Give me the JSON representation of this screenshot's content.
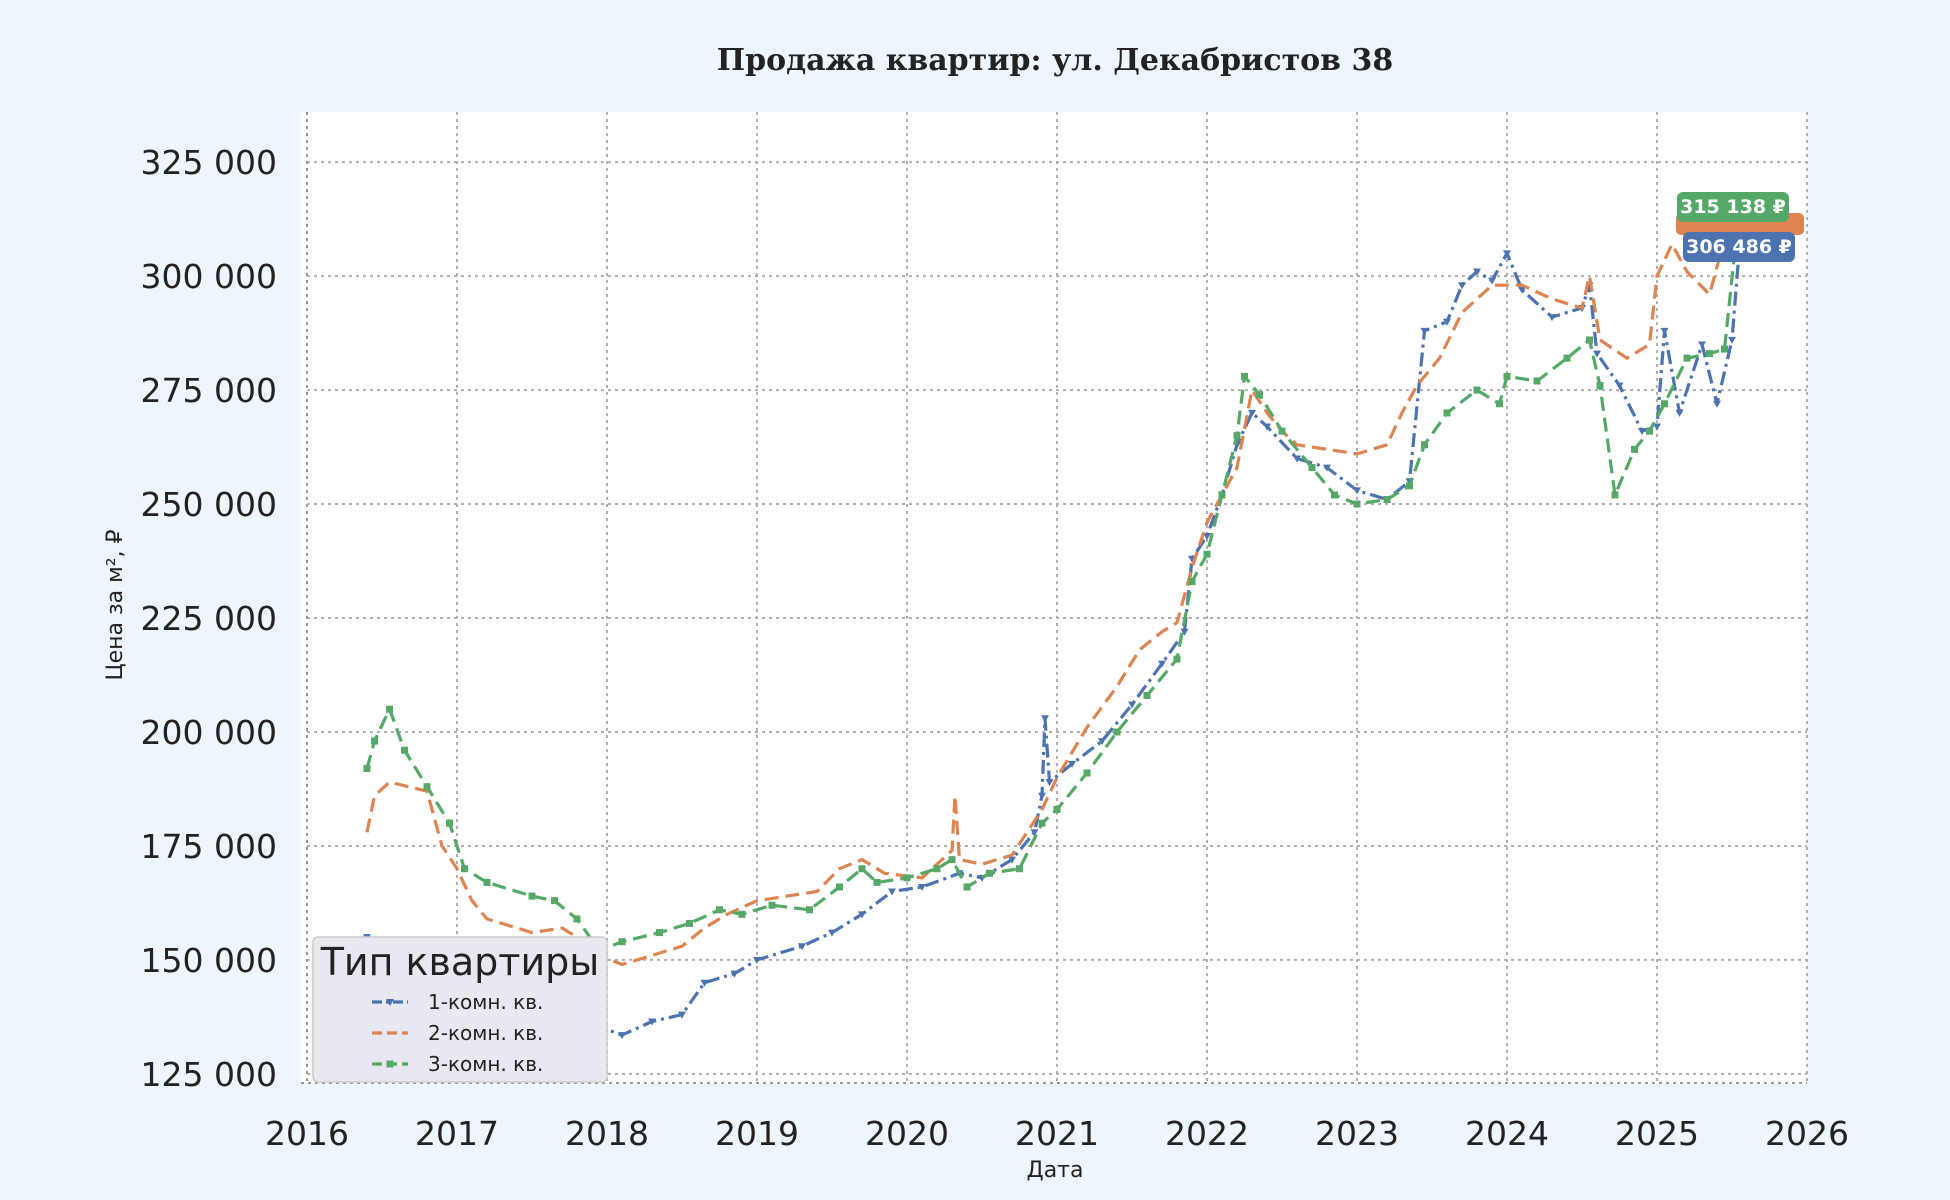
{
  "chart_data": {
    "type": "line",
    "title": "Продажа квартир: ул. Декабристов 38",
    "xlabel": "Дата",
    "ylabel": "Цена за м², ₽",
    "xlim": [
      2016.0,
      2026.0
    ],
    "ylim": [
      123000,
      336000
    ],
    "x_ticks": [
      "2016",
      "2017",
      "2018",
      "2019",
      "2020",
      "2021",
      "2022",
      "2023",
      "2024",
      "2025",
      "2026"
    ],
    "y_ticks": [
      "125 000",
      "150 000",
      "175 000",
      "200 000",
      "225 000",
      "250 000",
      "275 000",
      "300 000",
      "325 000"
    ],
    "y_tick_values": [
      125000,
      150000,
      175000,
      200000,
      225000,
      250000,
      275000,
      300000,
      325000
    ],
    "grid": true,
    "legend": {
      "title": "Тип квартиры",
      "placement": "lower-left"
    },
    "series": [
      {
        "name": "1-комн. кв.",
        "color": "#4c72b0",
        "style": "dash-dot",
        "marker": "triangle-down",
        "end_label": "306 486 ₽",
        "points": [
          [
            2016.4,
            155000
          ],
          [
            2016.6,
            153000
          ],
          [
            2016.9,
            150000
          ],
          [
            2017.2,
            146000
          ],
          [
            2017.5,
            141000
          ],
          [
            2017.7,
            138000
          ],
          [
            2017.9,
            136000
          ],
          [
            2018.1,
            133500
          ],
          [
            2018.3,
            136500
          ],
          [
            2018.5,
            138000
          ],
          [
            2018.65,
            145000
          ],
          [
            2018.85,
            147000
          ],
          [
            2019.0,
            150000
          ],
          [
            2019.3,
            153000
          ],
          [
            2019.5,
            156000
          ],
          [
            2019.7,
            160000
          ],
          [
            2019.9,
            165000
          ],
          [
            2020.1,
            166000
          ],
          [
            2020.35,
            169000
          ],
          [
            2020.5,
            168000
          ],
          [
            2020.7,
            172000
          ],
          [
            2020.85,
            178000
          ],
          [
            2020.9,
            186000
          ],
          [
            2020.92,
            203000
          ],
          [
            2020.95,
            189000
          ],
          [
            2021.1,
            193000
          ],
          [
            2021.3,
            198000
          ],
          [
            2021.5,
            206000
          ],
          [
            2021.7,
            215000
          ],
          [
            2021.85,
            222000
          ],
          [
            2021.9,
            238000
          ],
          [
            2022.0,
            243000
          ],
          [
            2022.1,
            252000
          ],
          [
            2022.2,
            263000
          ],
          [
            2022.3,
            270000
          ],
          [
            2022.4,
            267000
          ],
          [
            2022.6,
            260000
          ],
          [
            2022.8,
            258000
          ],
          [
            2023.0,
            253000
          ],
          [
            2023.2,
            251000
          ],
          [
            2023.35,
            255000
          ],
          [
            2023.45,
            288000
          ],
          [
            2023.6,
            290000
          ],
          [
            2023.7,
            298000
          ],
          [
            2023.8,
            301000
          ],
          [
            2023.9,
            299000
          ],
          [
            2024.0,
            305000
          ],
          [
            2024.1,
            297000
          ],
          [
            2024.3,
            291000
          ],
          [
            2024.5,
            293000
          ],
          [
            2024.55,
            298000
          ],
          [
            2024.6,
            283000
          ],
          [
            2024.75,
            276000
          ],
          [
            2024.9,
            266000
          ],
          [
            2025.0,
            267000
          ],
          [
            2025.05,
            288000
          ],
          [
            2025.15,
            270000
          ],
          [
            2025.3,
            285000
          ],
          [
            2025.4,
            272000
          ],
          [
            2025.5,
            286000
          ],
          [
            2025.55,
            306486
          ]
        ]
      },
      {
        "name": "2-комн. кв.",
        "color": "#dd8452",
        "style": "dashed",
        "marker": "none",
        "end_label": "",
        "points": [
          [
            2016.4,
            178000
          ],
          [
            2016.45,
            186000
          ],
          [
            2016.55,
            189000
          ],
          [
            2016.8,
            187000
          ],
          [
            2016.9,
            175000
          ],
          [
            2017.0,
            170000
          ],
          [
            2017.1,
            163000
          ],
          [
            2017.2,
            159000
          ],
          [
            2017.5,
            156000
          ],
          [
            2017.7,
            157000
          ],
          [
            2017.8,
            155000
          ],
          [
            2017.95,
            151000
          ],
          [
            2018.1,
            149000
          ],
          [
            2018.3,
            151000
          ],
          [
            2018.5,
            153000
          ],
          [
            2018.65,
            157000
          ],
          [
            2018.8,
            160000
          ],
          [
            2019.0,
            163000
          ],
          [
            2019.2,
            164000
          ],
          [
            2019.4,
            165000
          ],
          [
            2019.55,
            170000
          ],
          [
            2019.7,
            172000
          ],
          [
            2019.85,
            169000
          ],
          [
            2020.1,
            168000
          ],
          [
            2020.3,
            174000
          ],
          [
            2020.32,
            186000
          ],
          [
            2020.35,
            172000
          ],
          [
            2020.5,
            171000
          ],
          [
            2020.7,
            173000
          ],
          [
            2020.9,
            183000
          ],
          [
            2021.0,
            190000
          ],
          [
            2021.2,
            201000
          ],
          [
            2021.4,
            210000
          ],
          [
            2021.55,
            218000
          ],
          [
            2021.7,
            222000
          ],
          [
            2021.8,
            224000
          ],
          [
            2021.9,
            236000
          ],
          [
            2022.0,
            246000
          ],
          [
            2022.1,
            252000
          ],
          [
            2022.2,
            258000
          ],
          [
            2022.3,
            275000
          ],
          [
            2022.4,
            270000
          ],
          [
            2022.5,
            266000
          ],
          [
            2022.6,
            263000
          ],
          [
            2022.8,
            262000
          ],
          [
            2023.0,
            261000
          ],
          [
            2023.2,
            263000
          ],
          [
            2023.3,
            270000
          ],
          [
            2023.4,
            276000
          ],
          [
            2023.55,
            282000
          ],
          [
            2023.7,
            292000
          ],
          [
            2023.9,
            298000
          ],
          [
            2024.1,
            298000
          ],
          [
            2024.3,
            295000
          ],
          [
            2024.5,
            293000
          ],
          [
            2024.55,
            300000
          ],
          [
            2024.62,
            286000
          ],
          [
            2024.8,
            282000
          ],
          [
            2024.95,
            285000
          ],
          [
            2025.0,
            300000
          ],
          [
            2025.1,
            307000
          ],
          [
            2025.2,
            301000
          ],
          [
            2025.35,
            296000
          ],
          [
            2025.45,
            308000
          ],
          [
            2025.55,
            312000
          ]
        ]
      },
      {
        "name": "3-комн. кв.",
        "color": "#55a868",
        "style": "dashed",
        "marker": "square",
        "end_label": "315 138 ₽",
        "points": [
          [
            2016.4,
            192000
          ],
          [
            2016.45,
            198000
          ],
          [
            2016.55,
            205000
          ],
          [
            2016.65,
            196000
          ],
          [
            2016.8,
            188000
          ],
          [
            2016.95,
            180000
          ],
          [
            2017.05,
            170000
          ],
          [
            2017.2,
            167000
          ],
          [
            2017.5,
            164000
          ],
          [
            2017.65,
            163000
          ],
          [
            2017.8,
            159000
          ],
          [
            2017.95,
            152000
          ],
          [
            2018.1,
            154000
          ],
          [
            2018.35,
            156000
          ],
          [
            2018.55,
            158000
          ],
          [
            2018.75,
            161000
          ],
          [
            2018.9,
            160000
          ],
          [
            2019.1,
            162000
          ],
          [
            2019.35,
            161000
          ],
          [
            2019.55,
            166000
          ],
          [
            2019.7,
            170000
          ],
          [
            2019.8,
            167000
          ],
          [
            2020.0,
            168000
          ],
          [
            2020.2,
            170000
          ],
          [
            2020.3,
            172000
          ],
          [
            2020.4,
            166000
          ],
          [
            2020.55,
            169000
          ],
          [
            2020.75,
            170000
          ],
          [
            2020.9,
            180000
          ],
          [
            2021.0,
            183000
          ],
          [
            2021.2,
            191000
          ],
          [
            2021.4,
            200000
          ],
          [
            2021.6,
            208000
          ],
          [
            2021.8,
            216000
          ],
          [
            2021.9,
            233000
          ],
          [
            2022.0,
            239000
          ],
          [
            2022.1,
            252000
          ],
          [
            2022.2,
            265000
          ],
          [
            2022.25,
            278000
          ],
          [
            2022.35,
            274000
          ],
          [
            2022.5,
            266000
          ],
          [
            2022.7,
            258000
          ],
          [
            2022.85,
            252000
          ],
          [
            2023.0,
            250000
          ],
          [
            2023.2,
            251000
          ],
          [
            2023.35,
            254000
          ],
          [
            2023.45,
            263000
          ],
          [
            2023.6,
            270000
          ],
          [
            2023.8,
            275000
          ],
          [
            2023.95,
            272000
          ],
          [
            2024.0,
            278000
          ],
          [
            2024.2,
            277000
          ],
          [
            2024.4,
            282000
          ],
          [
            2024.55,
            286000
          ],
          [
            2024.62,
            276000
          ],
          [
            2024.72,
            252000
          ],
          [
            2024.85,
            262000
          ],
          [
            2024.95,
            266000
          ],
          [
            2025.05,
            272000
          ],
          [
            2025.2,
            282000
          ],
          [
            2025.35,
            283000
          ],
          [
            2025.45,
            284000
          ],
          [
            2025.55,
            315138
          ]
        ]
      }
    ]
  }
}
